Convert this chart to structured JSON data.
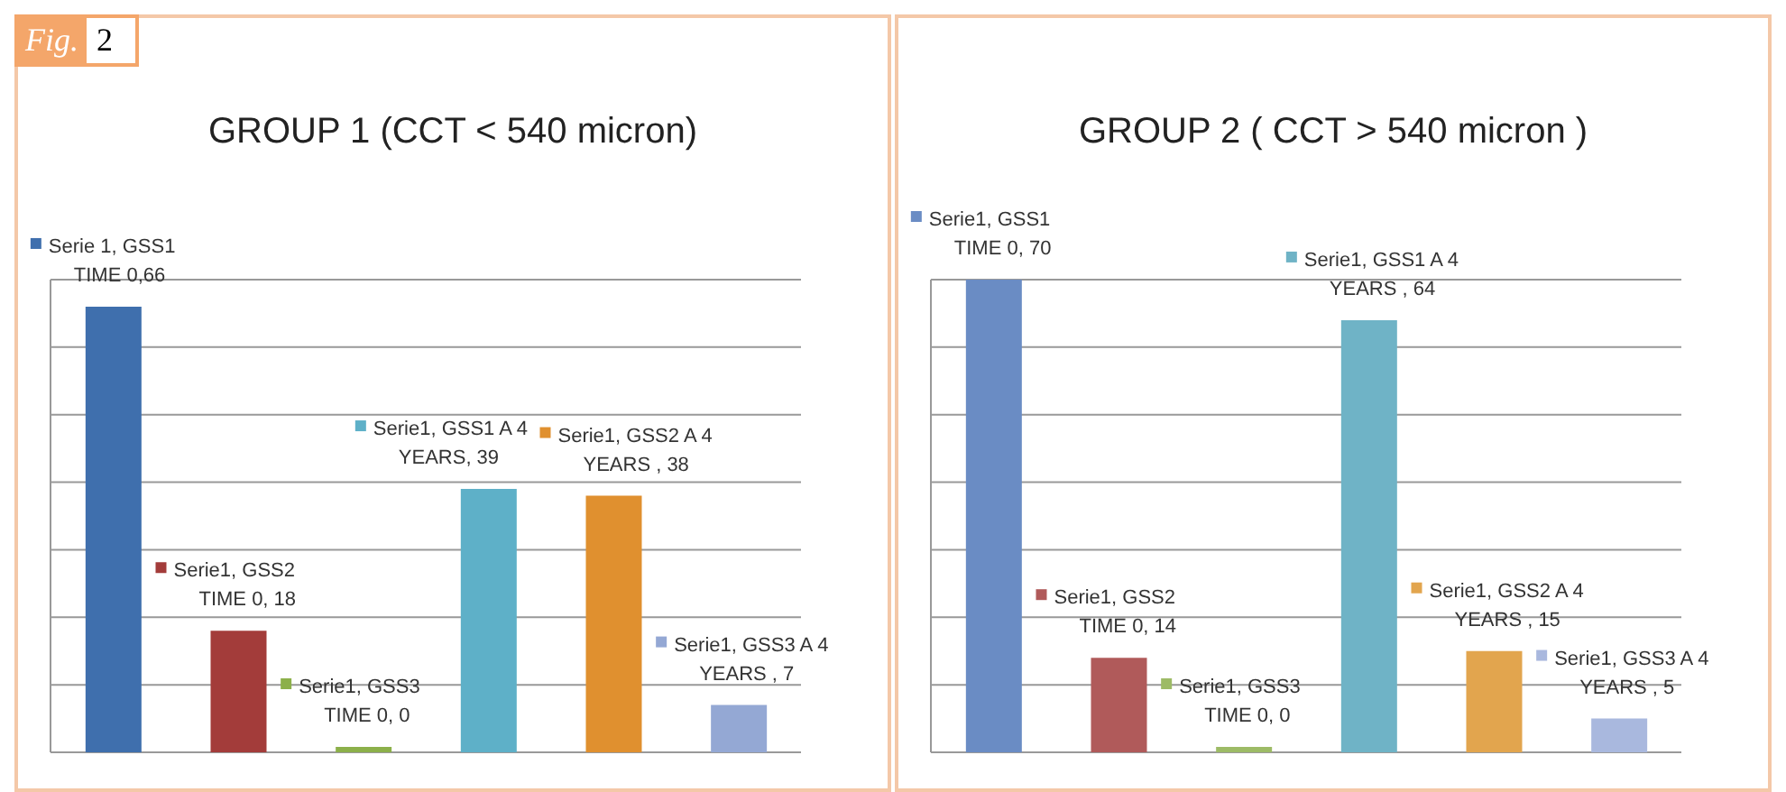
{
  "chart_data": [
    {
      "type": "bar",
      "title": "GROUP 1 (CCT < 540 micron)",
      "annotations": [
        "Fig. 2"
      ],
      "categories": [
        null,
        null,
        null,
        null,
        null,
        null
      ],
      "values": [
        66,
        18,
        0,
        39,
        38,
        7
      ],
      "colors": [
        "#3f6fad",
        "#a33c3a",
        "#8cb04a",
        "#5eb0c8",
        "#e0902f",
        "#94a8d4"
      ],
      "value_labels": [
        "Serie 1, GSS1\nTIME 0,66",
        "Serie1, GSS2\nTIME 0, 18",
        "Serie1, GSS3\nTIME 0, 0",
        "Serie1, GSS1 A 4\nYEARS, 39",
        "Serie1, GSS2 A 4\nYEARS , 38",
        "Serie1, GSS3 A 4\nYEARS , 7"
      ],
      "ylim": [
        0,
        70
      ],
      "yticks": [
        {
          "value": 0,
          "label": null
        },
        {
          "value": 10,
          "label": null
        },
        {
          "value": 20,
          "label": null
        },
        {
          "value": 30,
          "label": null
        },
        {
          "value": 40,
          "label": null
        },
        {
          "value": 50,
          "label": null
        },
        {
          "value": 60,
          "label": null
        },
        {
          "value": 70,
          "label": null
        }
      ],
      "grid": "y",
      "tick_labels": false,
      "legend": false
    },
    {
      "type": "bar",
      "title": "GROUP 2 ( CCT > 540 micron )",
      "categories": [
        null,
        null,
        null,
        null,
        null,
        null
      ],
      "values": [
        70,
        14,
        0,
        64,
        15,
        5
      ],
      "colors": [
        "#6a8cc4",
        "#b05a5a",
        "#9dbb66",
        "#6fb3c6",
        "#e2a54e",
        "#a9b8de"
      ],
      "value_labels": [
        "Serie1, GSS1\nTIME 0, 70",
        "Serie1, GSS2\nTIME  0, 14",
        "Serie1, GSS3\nTIME  0, 0",
        "Serie1, GSS1 A 4\nYEARS , 64",
        "Serie1, GSS2 A 4\nYEARS , 15",
        "Serie1, GSS3 A 4\nYEARS , 5"
      ],
      "ylim": [
        0,
        70
      ],
      "yticks": [
        {
          "value": 0,
          "label": null
        },
        {
          "value": 10,
          "label": null
        },
        {
          "value": 20,
          "label": null
        },
        {
          "value": 30,
          "label": null
        },
        {
          "value": 40,
          "label": null
        },
        {
          "value": 50,
          "label": null
        },
        {
          "value": 60,
          "label": null
        },
        {
          "value": 70,
          "label": null
        }
      ],
      "grid": "y",
      "tick_labels": false,
      "legend": false
    }
  ]
}
